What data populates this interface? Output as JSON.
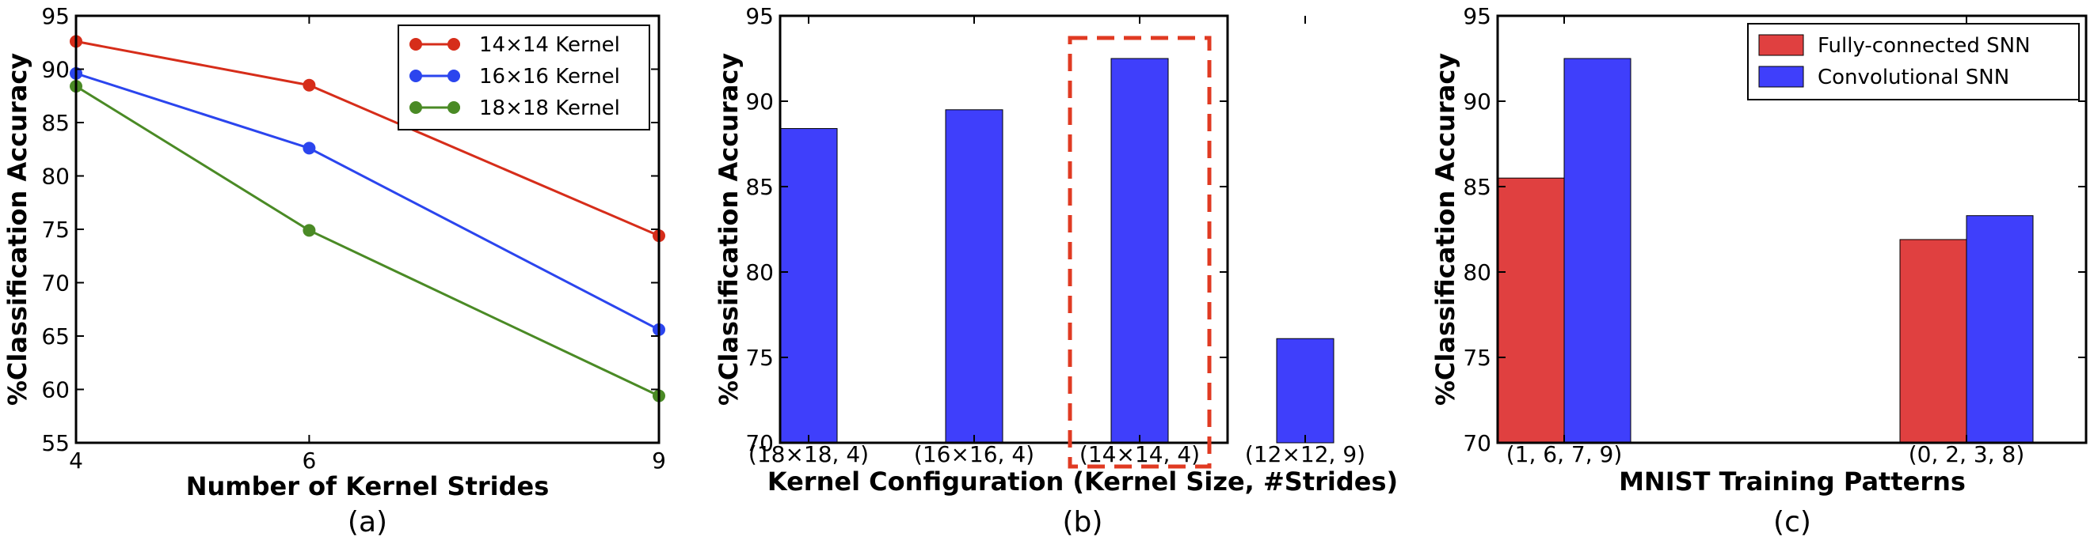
{
  "chart_data": [
    {
      "type": "line",
      "caption": "(a)",
      "xlabel": "Number of Kernel Strides",
      "ylabel": "%Classification Accuracy",
      "x": [
        4,
        6,
        9
      ],
      "xlim": [
        4,
        9
      ],
      "ylim": [
        55,
        95
      ],
      "xticks": [
        "4",
        "6",
        "9"
      ],
      "yticks": [
        "55",
        "60",
        "65",
        "70",
        "75",
        "80",
        "85",
        "90",
        "95"
      ],
      "legend_position": "top-right",
      "series": [
        {
          "name": "14×14 Kernel",
          "color": "#d62d1a",
          "values": [
            92.6,
            88.5,
            74.4
          ]
        },
        {
          "name": "16×16 Kernel",
          "color": "#2b45ee",
          "values": [
            89.6,
            82.6,
            65.6
          ]
        },
        {
          "name": "18×18 Kernel",
          "color": "#4a8a25",
          "values": [
            88.4,
            74.9,
            59.4
          ]
        }
      ]
    },
    {
      "type": "bar",
      "caption": "(b)",
      "xlabel": "Kernel Configuration (Kernel Size, #Strides)",
      "ylabel": "%Classification Accuracy",
      "categories": [
        "(18×18, 4)",
        "(16×16, 4)",
        "(14×14, 4)",
        "(12×12, 9)"
      ],
      "values": [
        88.4,
        89.5,
        92.5,
        76.1
      ],
      "ylim": [
        70,
        95
      ],
      "yticks": [
        "70",
        "75",
        "80",
        "85",
        "90",
        "95"
      ],
      "bar_color": "#3f3ffb",
      "highlight_color": "#e03a22",
      "highlight_index": 2
    },
    {
      "type": "bar",
      "caption": "(c)",
      "xlabel": "MNIST Training Patterns",
      "ylabel": "%Classification Accuracy",
      "categories": [
        "(1, 6, 7, 9)",
        "(0, 2, 3, 8)"
      ],
      "ylim": [
        70,
        95
      ],
      "yticks": [
        "70",
        "75",
        "80",
        "85",
        "90",
        "95"
      ],
      "legend_position": "top-right",
      "series": [
        {
          "name": "Fully-connected SNN",
          "color": "#e04040",
          "values": [
            85.5,
            81.9
          ]
        },
        {
          "name": "Convolutional SNN",
          "color": "#3f3ffb",
          "values": [
            92.5,
            83.3
          ]
        }
      ]
    }
  ]
}
